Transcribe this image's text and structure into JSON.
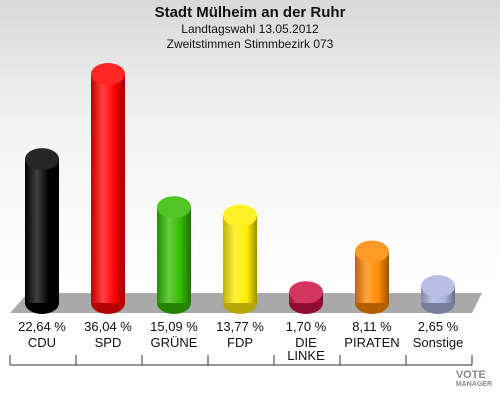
{
  "chart_data": {
    "type": "bar",
    "title": "Stadt Mülheim an der Ruhr",
    "subtitle_line1": "Landtagswahl 13.05.2012",
    "subtitle_line2": "Zweitstimmen Stimmbezirk 073",
    "categories": [
      {
        "label": "CDU",
        "label_line2": ""
      },
      {
        "label": "SPD",
        "label_line2": ""
      },
      {
        "label": "GRÜNE",
        "label_line2": ""
      },
      {
        "label": "FDP",
        "label_line2": ""
      },
      {
        "label": "DIE",
        "label_line2": "LINKE"
      },
      {
        "label": "PIRATEN",
        "label_line2": ""
      },
      {
        "label": "Sonstige",
        "label_line2": ""
      }
    ],
    "values": [
      22.64,
      36.04,
      15.09,
      13.77,
      1.7,
      8.11,
      2.65
    ],
    "value_labels": [
      "22,64 %",
      "36,04 %",
      "15,09 %",
      "13,77 %",
      "1,70 %",
      "8,11 %",
      "2,65 %"
    ],
    "colors": [
      "#000000",
      "#ff0000",
      "#33bb00",
      "#ffee00",
      "#cc1144",
      "#ff8800",
      "#aab4e0"
    ],
    "ylim": [
      0,
      36.04
    ],
    "grid": false
  },
  "logo": {
    "line1": "VOTE",
    "line2": "MANAGER"
  }
}
